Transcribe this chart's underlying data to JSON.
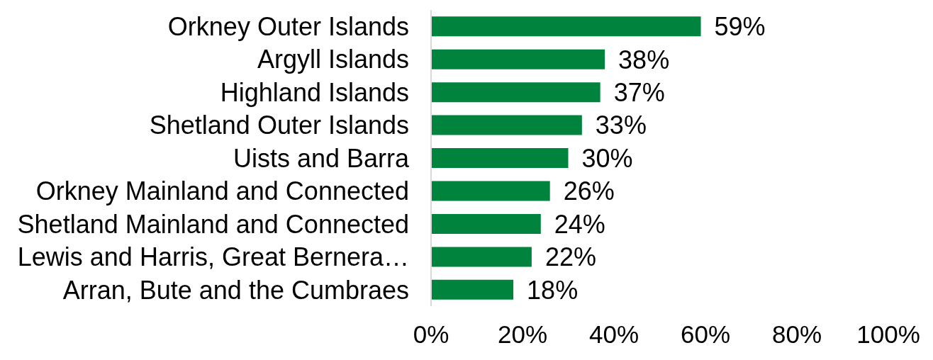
{
  "chart_data": {
    "type": "bar",
    "orientation": "horizontal",
    "categories": [
      "Orkney Outer Islands",
      "Argyll Islands",
      "Highland Islands",
      "Shetland Outer Islands",
      "Uists and Barra",
      "Orkney Mainland and Connected",
      "Shetland Mainland and Connected",
      "Lewis and Harris, Great Bernera…",
      "Arran, Bute and the Cumbraes"
    ],
    "values": [
      59,
      38,
      37,
      33,
      30,
      26,
      24,
      22,
      18
    ],
    "color": "#00843d",
    "value_labels": [
      "59%",
      "38%",
      "37%",
      "33%",
      "30%",
      "26%",
      "24%",
      "22%",
      "18%"
    ],
    "xlim": [
      0,
      100
    ],
    "xticks": [
      {
        "value": 0,
        "label": "0%"
      },
      {
        "value": 20,
        "label": "20%"
      },
      {
        "value": 40,
        "label": "40%"
      },
      {
        "value": 60,
        "label": "60%"
      },
      {
        "value": 80,
        "label": "80%"
      },
      {
        "value": 100,
        "label": "100%"
      }
    ]
  }
}
